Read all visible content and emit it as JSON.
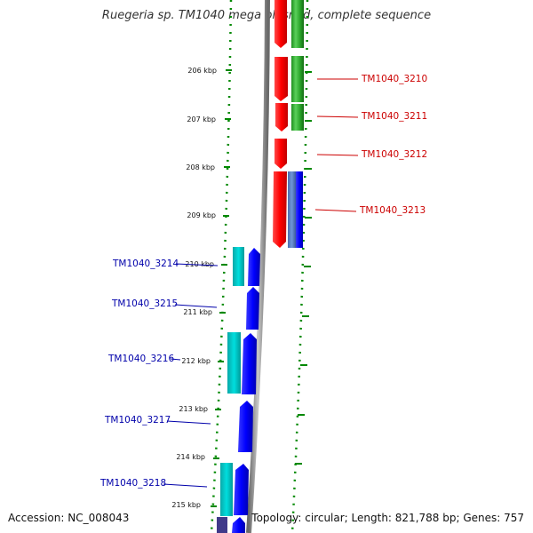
{
  "header": {
    "title": "Ruegeria sp. TM1040 mega plasmid, complete sequence"
  },
  "footer": {
    "accession": "Accession: NC_008043",
    "stats": "Topology: circular; Length: 821,788 bp; Genes: 757"
  },
  "ticks": [
    "206 kbp",
    "207 kbp",
    "208 kbp",
    "209 kbp",
    "210 kbp",
    "211 kbp",
    "212 kbp",
    "213 kbp",
    "214 kbp",
    "215 kbp"
  ],
  "genes_forward": [
    {
      "label": "TM1040_3210",
      "color": "#cc0000"
    },
    {
      "label": "TM1040_3211",
      "color": "#cc0000"
    },
    {
      "label": "TM1040_3212",
      "color": "#cc0000"
    },
    {
      "label": "TM1040_3213",
      "color": "#cc0000"
    }
  ],
  "genes_reverse": [
    {
      "label": "TM1040_3214",
      "color": "#0000aa"
    },
    {
      "label": "TM1040_3215",
      "color": "#0000aa"
    },
    {
      "label": "TM1040_3216",
      "color": "#0000aa"
    },
    {
      "label": "TM1040_3217",
      "color": "#0000aa"
    },
    {
      "label": "TM1040_3218",
      "color": "#0000aa"
    }
  ],
  "colors": {
    "forward_gene": "#ff0000",
    "reverse_gene": "#0000ff",
    "green_feature": "#22aa22",
    "cyan_feature": "#00cccc",
    "tick_green": "#008800",
    "backbone": "#888888"
  }
}
